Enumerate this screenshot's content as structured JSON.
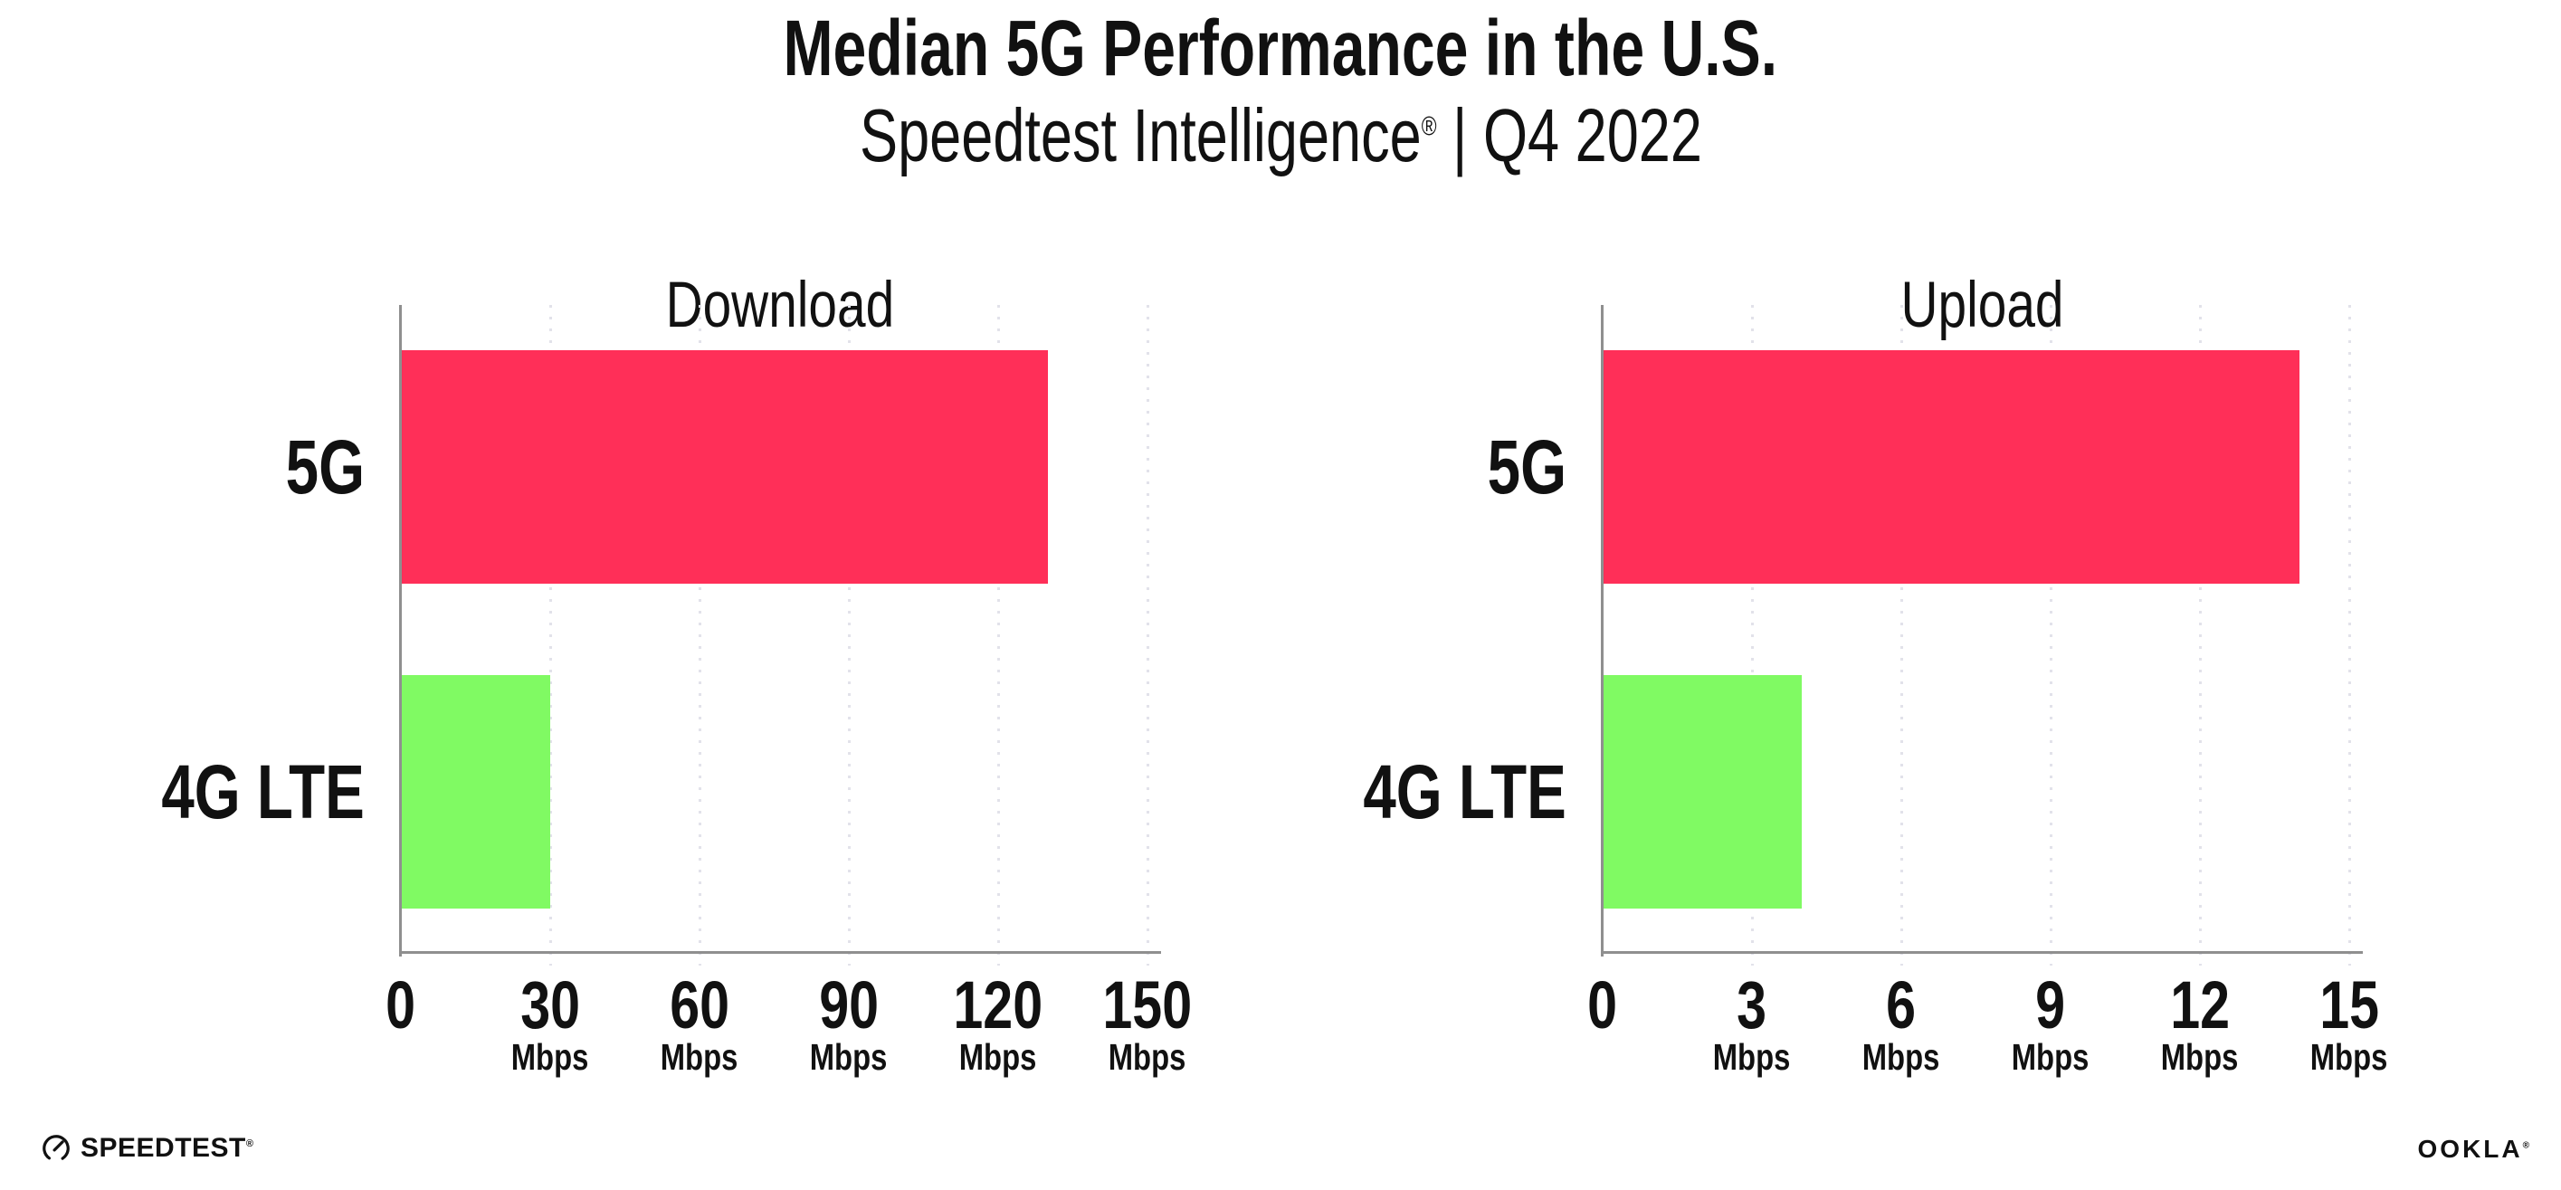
{
  "header": {
    "title": "Median 5G Performance in the U.S.",
    "subtitle_brand": "Speedtest Intelligence",
    "subtitle_reg": "®",
    "subtitle_rest": " | Q4 2022"
  },
  "chart_data": [
    {
      "type": "bar",
      "orientation": "horizontal",
      "title": "Download",
      "categories": [
        "5G",
        "4G LTE"
      ],
      "values": [
        130,
        30
      ],
      "unit": "Mbps",
      "ticks": [
        0,
        30,
        60,
        90,
        120,
        150
      ],
      "tick_step": 30,
      "xlim": [
        0,
        152.4
      ],
      "grid": "dotted-vertical",
      "legend": "none",
      "bar_colors": [
        "#ff2f58",
        "#80fa63"
      ]
    },
    {
      "type": "bar",
      "orientation": "horizontal",
      "title": "Upload",
      "categories": [
        "5G",
        "4G LTE"
      ],
      "values": [
        14,
        4
      ],
      "unit": "Mbps",
      "ticks": [
        0,
        3,
        6,
        9,
        12,
        15
      ],
      "tick_step": 3,
      "xlim": [
        0,
        15.24
      ],
      "grid": "dotted-vertical",
      "legend": "none",
      "bar_colors": [
        "#ff2f58",
        "#80fa63"
      ]
    }
  ],
  "colors": {
    "bar_5g": "#ff2f58",
    "bar_4g_lte": "#80fa63",
    "axis": "#8f8f8f",
    "grid_dot": "#e2e2ea",
    "text": "#111111",
    "background": "#ffffff"
  },
  "footer": {
    "speedtest_label": "SPEEDTEST",
    "speedtest_reg": "®",
    "ookla_label": "OOKLA",
    "ookla_reg": "®"
  }
}
